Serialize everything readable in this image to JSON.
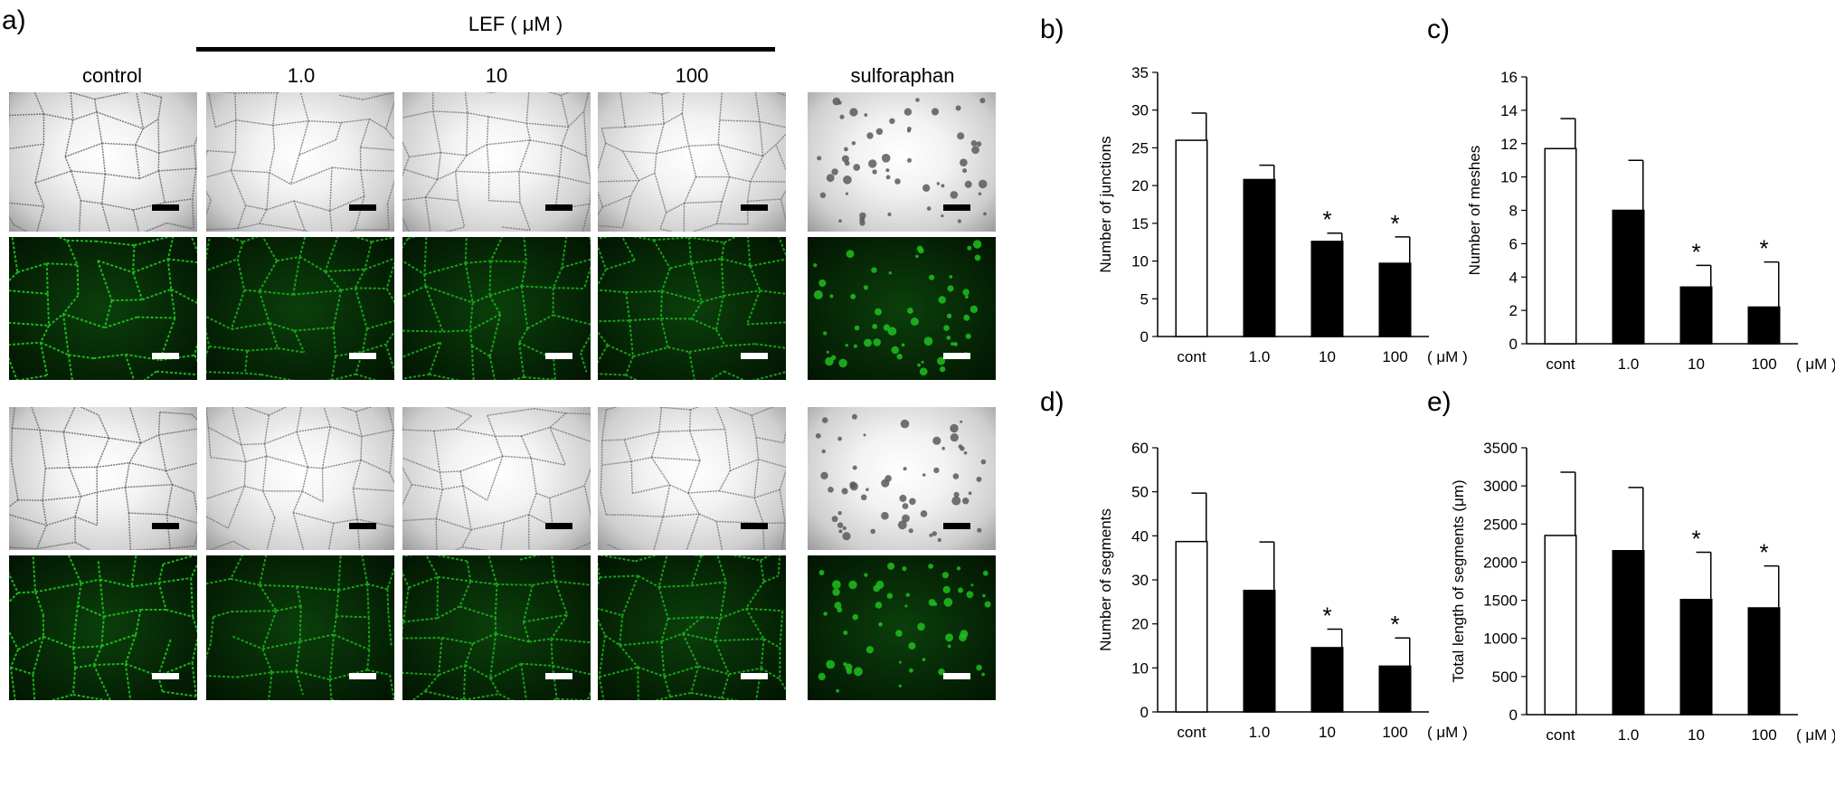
{
  "panel_a": {
    "label": "a)",
    "treatment_header": "LEF ( μM )",
    "columns": [
      "control",
      "1.0",
      "10",
      "100",
      "sulforaphan"
    ]
  },
  "chart_data": [
    {
      "panel": "b)",
      "type": "bar",
      "categories": [
        "cont",
        "1.0",
        "10",
        "100"
      ],
      "unit_label": "( μM )",
      "values": [
        26.0,
        20.8,
        12.6,
        9.7
      ],
      "errors": [
        3.6,
        1.9,
        1.1,
        3.5
      ],
      "significant": [
        false,
        false,
        true,
        true
      ],
      "ylabel": "Number of junctions",
      "ylim": [
        0,
        35
      ],
      "yticks": [
        0,
        5,
        10,
        15,
        20,
        25,
        30,
        35
      ],
      "bar_fill": [
        "#ffffff",
        "#000000",
        "#000000",
        "#000000"
      ]
    },
    {
      "panel": "c)",
      "type": "bar",
      "categories": [
        "cont",
        "1.0",
        "10",
        "100"
      ],
      "unit_label": "( μM )",
      "values": [
        11.7,
        8.0,
        3.4,
        2.2
      ],
      "errors": [
        1.8,
        3.0,
        1.3,
        2.7
      ],
      "significant": [
        false,
        false,
        true,
        true
      ],
      "ylabel": "Number of meshes",
      "ylim": [
        0,
        16
      ],
      "yticks": [
        0,
        2,
        4,
        6,
        8,
        10,
        12,
        14,
        16
      ],
      "bar_fill": [
        "#ffffff",
        "#000000",
        "#000000",
        "#000000"
      ]
    },
    {
      "panel": "d)",
      "type": "bar",
      "categories": [
        "cont",
        "1.0",
        "10",
        "100"
      ],
      "unit_label": "( μM )",
      "values": [
        38.7,
        27.6,
        14.6,
        10.4
      ],
      "errors": [
        11.0,
        11.0,
        4.2,
        6.4
      ],
      "significant": [
        false,
        false,
        true,
        true
      ],
      "ylabel": "Number of segments",
      "ylim": [
        0,
        60
      ],
      "yticks": [
        0,
        10,
        20,
        30,
        40,
        50,
        60
      ],
      "bar_fill": [
        "#ffffff",
        "#000000",
        "#000000",
        "#000000"
      ]
    },
    {
      "panel": "e)",
      "type": "bar",
      "categories": [
        "cont",
        "1.0",
        "10",
        "100"
      ],
      "unit_label": "( μM )",
      "values": [
        2350,
        2150,
        1510,
        1400
      ],
      "errors": [
        830,
        830,
        620,
        550
      ],
      "significant": [
        false,
        false,
        true,
        true
      ],
      "ylabel": "Total length of segments (μm)",
      "ylim": [
        0,
        3500
      ],
      "yticks": [
        0,
        500,
        1000,
        1500,
        2000,
        2500,
        3000,
        3500
      ],
      "bar_fill": [
        "#ffffff",
        "#000000",
        "#000000",
        "#000000"
      ]
    }
  ],
  "colors": {
    "axis": "#000000",
    "fluorescence": "#1fbf1f",
    "brightfield_background": "#d9d9d9"
  }
}
